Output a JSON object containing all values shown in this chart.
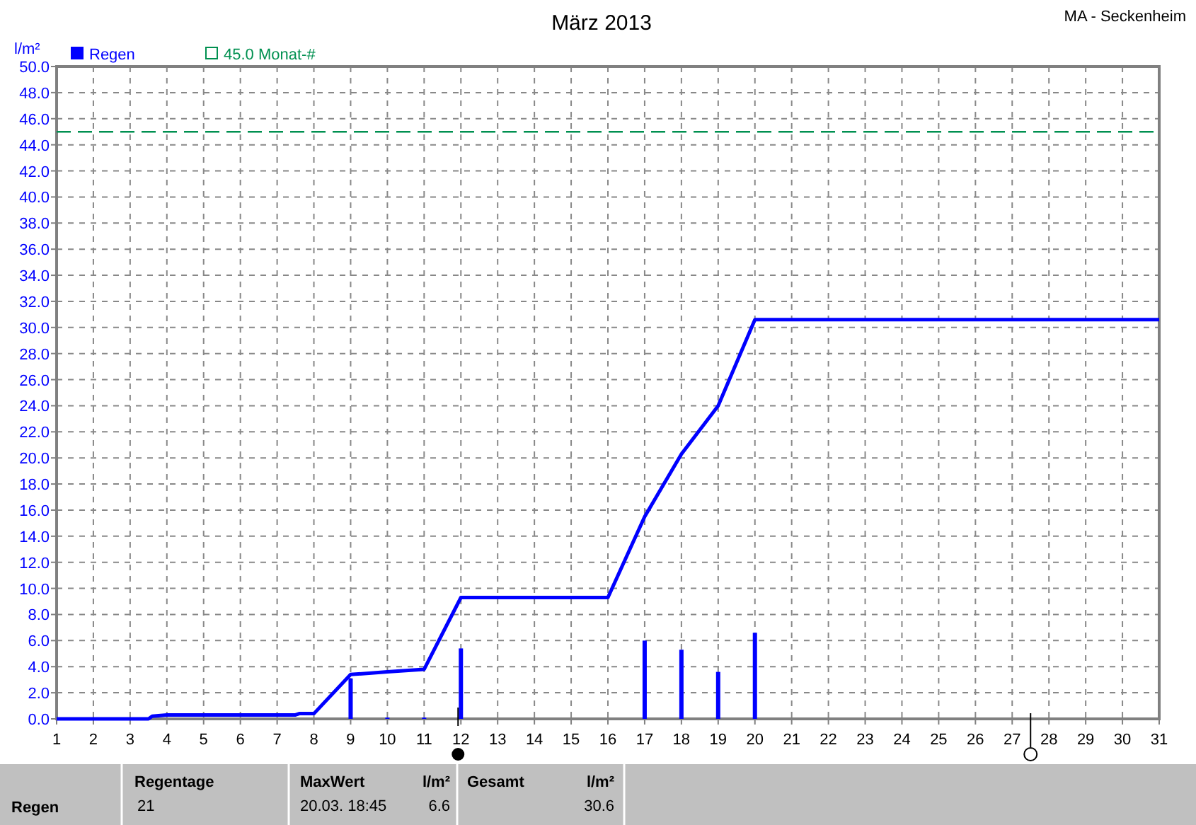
{
  "chart_data": {
    "type": "bar",
    "title": "März 2013",
    "subtitle": "MA - Seckenheim",
    "ylabel": "l/m²",
    "xlim": [
      1,
      31
    ],
    "xticks": [
      1,
      2,
      3,
      4,
      5,
      6,
      7,
      8,
      9,
      10,
      11,
      12,
      13,
      14,
      15,
      16,
      17,
      18,
      19,
      20,
      21,
      22,
      23,
      24,
      25,
      26,
      27,
      28,
      29,
      30,
      31
    ],
    "ylim": [
      0,
      50
    ],
    "yticks": [
      {
        "value": 0,
        "label": "0.0"
      },
      {
        "value": 2,
        "label": "2.0"
      },
      {
        "value": 4,
        "label": "4.0"
      },
      {
        "value": 6,
        "label": "6.0"
      },
      {
        "value": 8,
        "label": "8.0"
      },
      {
        "value": 10,
        "label": "10.0"
      },
      {
        "value": 12,
        "label": "12.0"
      },
      {
        "value": 14,
        "label": "14.0"
      },
      {
        "value": 16,
        "label": "16.0"
      },
      {
        "value": 18,
        "label": "18.0"
      },
      {
        "value": 20,
        "label": "20.0"
      },
      {
        "value": 22,
        "label": "22.0"
      },
      {
        "value": 24,
        "label": "24.0"
      },
      {
        "value": 26,
        "label": "26.0"
      },
      {
        "value": 28,
        "label": "28.0"
      },
      {
        "value": 30,
        "label": "30.0"
      },
      {
        "value": 32,
        "label": "32.0"
      },
      {
        "value": 34,
        "label": "34.0"
      },
      {
        "value": 36,
        "label": "36.0"
      },
      {
        "value": 38,
        "label": "38.0"
      },
      {
        "value": 40,
        "label": "40.0"
      },
      {
        "value": 42,
        "label": "42.0"
      },
      {
        "value": 44,
        "label": "44.0"
      },
      {
        "value": 46,
        "label": "46.0"
      },
      {
        "value": 48,
        "label": "48.0"
      },
      {
        "value": 50,
        "label": "50.0"
      }
    ],
    "grid": true,
    "legend": "top left",
    "series": [
      {
        "name": "Regen",
        "color": "#0000ff",
        "x": [
          9,
          10,
          11,
          12,
          17,
          18,
          19,
          20
        ],
        "values": [
          3.1,
          0.1,
          0.1,
          5.4,
          6.0,
          5.3,
          3.6,
          6.6
        ]
      },
      {
        "type": "line",
        "color": "#0000ff",
        "x": [
          1,
          3.5,
          3.6,
          4,
          7.5,
          7.6,
          8,
          9,
          9.5,
          10,
          11,
          12,
          16,
          17,
          18,
          19,
          20,
          31
        ],
        "values": [
          0,
          0,
          0.2,
          0.3,
          0.3,
          0.4,
          0.4,
          3.4,
          3.5,
          3.6,
          3.8,
          9.3,
          9.3,
          15.5,
          20.3,
          24.0,
          30.6,
          30.6
        ]
      }
    ],
    "ref_lines": [
      {
        "axis": "y",
        "value": 45,
        "label": "45.0 Monat-#",
        "color": "#009050",
        "line_style": "dashed"
      }
    ],
    "annotations": [
      "Regen",
      "Regentage",
      "21",
      "MaxWert",
      "l/m²",
      "20.03.  18:45",
      "6.6",
      "Gesamt",
      "l/m²",
      "30.6"
    ]
  }
}
